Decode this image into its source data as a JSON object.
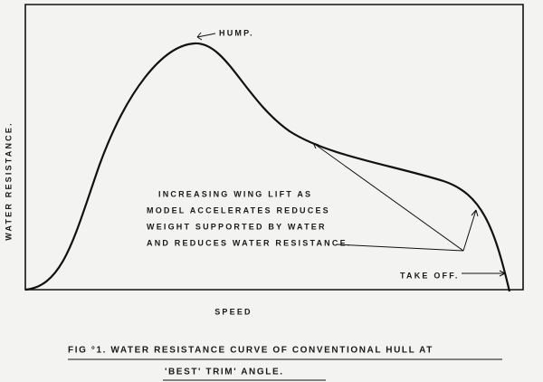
{
  "annotations": {
    "hump": "HUMP.",
    "take_off": "TAKE OFF.",
    "wing_lift": [
      "INCREASING WING LIFT AS",
      "MODEL ACCELERATES REDUCES",
      "WEIGHT SUPPORTED BY WATER",
      "AND REDUCES WATER RESISTANCE."
    ]
  },
  "axes": {
    "y_label": "WATER RESISTANCE.",
    "x_label": "SPEED"
  },
  "caption": [
    "FIG °1.  WATER RESISTANCE  CURVE OF CONVENTIONAL HULL AT",
    "'BEST' TRIM' ANGLE."
  ]
}
